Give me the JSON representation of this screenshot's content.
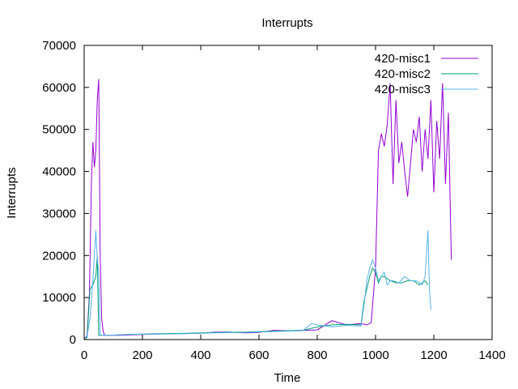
{
  "chart_data": {
    "type": "line",
    "title": "Interrupts",
    "xlabel": "Time",
    "ylabel": "Interrupts",
    "xlim": [
      0,
      1400
    ],
    "ylim": [
      0,
      70000
    ],
    "xticks": [
      0,
      200,
      400,
      600,
      800,
      1000,
      1200,
      1400
    ],
    "yticks": [
      0,
      10000,
      20000,
      30000,
      40000,
      50000,
      60000,
      70000
    ],
    "grid": false,
    "legend_position": "top-right",
    "series": [
      {
        "name": "420-misc1",
        "color": "#9400d3",
        "x": [
          0,
          10,
          18,
          25,
          30,
          35,
          40,
          45,
          50,
          55,
          60,
          65,
          70,
          75,
          80,
          120,
          200,
          300,
          400,
          450,
          500,
          550,
          600,
          650,
          700,
          750,
          800,
          850,
          900,
          950,
          970,
          985,
          1000,
          1010,
          1020,
          1030,
          1040,
          1050,
          1060,
          1070,
          1080,
          1090,
          1100,
          1110,
          1120,
          1130,
          1140,
          1150,
          1160,
          1170,
          1180,
          1190,
          1200,
          1210,
          1220,
          1230,
          1240,
          1250,
          1260
        ],
        "y": [
          0,
          1000,
          11000,
          38000,
          47000,
          41000,
          45000,
          57000,
          62000,
          20000,
          5000,
          2000,
          1000,
          1000,
          1000,
          1000,
          1200,
          1400,
          1500,
          1800,
          1800,
          1600,
          1700,
          2200,
          2100,
          2200,
          2300,
          4500,
          3500,
          3800,
          3500,
          4000,
          17000,
          45000,
          49000,
          46000,
          51000,
          61000,
          37000,
          57000,
          42000,
          47000,
          40000,
          34000,
          42000,
          50000,
          47000,
          53000,
          40000,
          50000,
          43000,
          57000,
          35000,
          52000,
          43000,
          61000,
          37000,
          54000,
          19000
        ]
      },
      {
        "name": "420-misc2",
        "color": "#009e73",
        "x": [
          0,
          10,
          20,
          30,
          40,
          45,
          50,
          55,
          60,
          80,
          150,
          250,
          350,
          450,
          550,
          650,
          750,
          800,
          850,
          900,
          950,
          960,
          970,
          980,
          990,
          1000,
          1010,
          1020,
          1030,
          1050,
          1070,
          1090,
          1110,
          1130,
          1150,
          1170,
          1180
        ],
        "y": [
          0,
          500,
          12000,
          13000,
          15000,
          20000,
          1000,
          1000,
          1000,
          1000,
          1200,
          1400,
          1500,
          1700,
          1800,
          2000,
          2200,
          3000,
          3500,
          3600,
          3500,
          9000,
          12000,
          15000,
          17000,
          16000,
          13500,
          15000,
          15000,
          14000,
          13500,
          13500,
          14000,
          14000,
          13000,
          14000,
          13000
        ]
      },
      {
        "name": "420-misc3",
        "color": "#56b4e9",
        "x": [
          0,
          10,
          20,
          30,
          35,
          40,
          45,
          50,
          55,
          60,
          80,
          150,
          250,
          350,
          450,
          550,
          650,
          750,
          780,
          800,
          850,
          900,
          950,
          960,
          970,
          980,
          990,
          1000,
          1010,
          1020,
          1030,
          1040,
          1050,
          1060,
          1080,
          1100,
          1120,
          1140,
          1160,
          1170,
          1180,
          1185,
          1190
        ],
        "y": [
          0,
          800,
          5000,
          14000,
          20000,
          26000,
          19000,
          16000,
          1000,
          1000,
          1000,
          1200,
          1300,
          1400,
          1600,
          1700,
          1900,
          2100,
          3800,
          3500,
          3000,
          3400,
          3200,
          8000,
          14000,
          17000,
          19000,
          17000,
          14000,
          15000,
          16000,
          13000,
          14000,
          14000,
          13500,
          15000,
          14000,
          14000,
          13000,
          15000,
          26000,
          12000,
          7000
        ]
      }
    ]
  }
}
